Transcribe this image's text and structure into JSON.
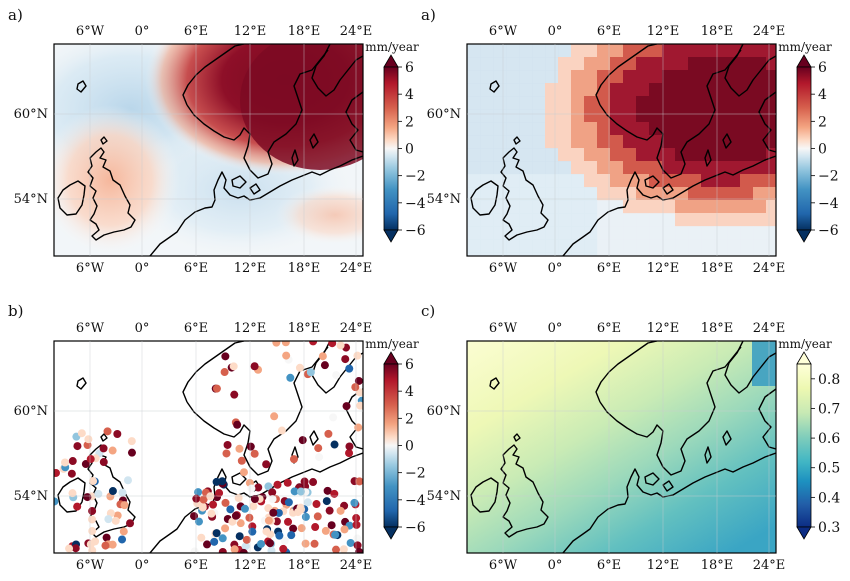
{
  "figure": {
    "panels": [
      {
        "id": "panel-a1",
        "label": "a)",
        "kind": "smooth-field",
        "x_ticks_top": [
          "6°W",
          "0°",
          "6°E",
          "12°E",
          "18°E",
          "24°E"
        ],
        "x_ticks_bottom": [
          "6°W",
          "0°",
          "6°E",
          "12°E",
          "18°E",
          "24°E"
        ],
        "y_ticks": [
          "60°N",
          "54°N"
        ],
        "colorbar": {
          "unit": "mm/year",
          "ticks": [
            "6",
            "4",
            "2",
            "0",
            "−2",
            "−4",
            "−6"
          ],
          "cmap": "RdBu_r",
          "range": [
            -6,
            6
          ],
          "extend": "both"
        }
      },
      {
        "id": "panel-a2",
        "label": "a)",
        "kind": "gridded-field",
        "x_ticks_top": [
          "6°W",
          "0°",
          "6°E",
          "12°E",
          "18°E",
          "24°E"
        ],
        "x_ticks_bottom": [
          "6°W",
          "0°",
          "6°E",
          "12°E",
          "18°E",
          "24°E"
        ],
        "y_ticks": [
          "60°N",
          "54°N"
        ],
        "colorbar": {
          "unit": "mm/year",
          "ticks": [
            "6",
            "4",
            "2",
            "0",
            "−2",
            "−4",
            "−6"
          ],
          "cmap": "RdBu_r",
          "range": [
            -6,
            6
          ],
          "extend": "both"
        }
      },
      {
        "id": "panel-b",
        "label": "b)",
        "kind": "station-points",
        "x_ticks_top": [
          "6°W",
          "0°",
          "6°E",
          "12°E",
          "18°E",
          "24°E"
        ],
        "x_ticks_bottom": [
          "6°W",
          "0°",
          "6°E",
          "12°E",
          "18°E",
          "24°E"
        ],
        "y_ticks": [
          "60°N",
          "54°N"
        ],
        "colorbar": {
          "unit": "mm/year",
          "ticks": [
            "6",
            "4",
            "2",
            "0",
            "−2",
            "−4",
            "−6"
          ],
          "cmap": "RdBu_r",
          "range": [
            -6,
            6
          ],
          "extend": "both"
        }
      },
      {
        "id": "panel-c",
        "label": "c)",
        "kind": "uncertainty-field",
        "x_ticks_top": [
          "6°W",
          "0°",
          "6°E",
          "12°E",
          "18°E",
          "24°E"
        ],
        "x_ticks_bottom": [
          "6°W",
          "0°",
          "6°E",
          "12°E",
          "18°E",
          "24°E"
        ],
        "y_ticks": [
          "60°N",
          "54°N"
        ],
        "colorbar": {
          "unit": "mm/year",
          "ticks": [
            "0.8",
            "0.7",
            "0.6",
            "0.5",
            "0.4",
            "0.3"
          ],
          "cmap": "YlGnBu",
          "range": [
            0.3,
            0.85
          ],
          "extend": "both"
        }
      }
    ],
    "colors": {
      "rdbu": [
        "#67001f",
        "#b2182b",
        "#d6604d",
        "#f4a582",
        "#fddbc7",
        "#f7f7f7",
        "#d1e5f0",
        "#92c5de",
        "#4393c3",
        "#2166ac",
        "#053061"
      ],
      "ylgnbu": [
        "#ffffd9",
        "#edf8b1",
        "#c7e9b4",
        "#7fcdbb",
        "#41b6c4",
        "#1d91c0",
        "#225ea8",
        "#0c2c84"
      ]
    }
  }
}
